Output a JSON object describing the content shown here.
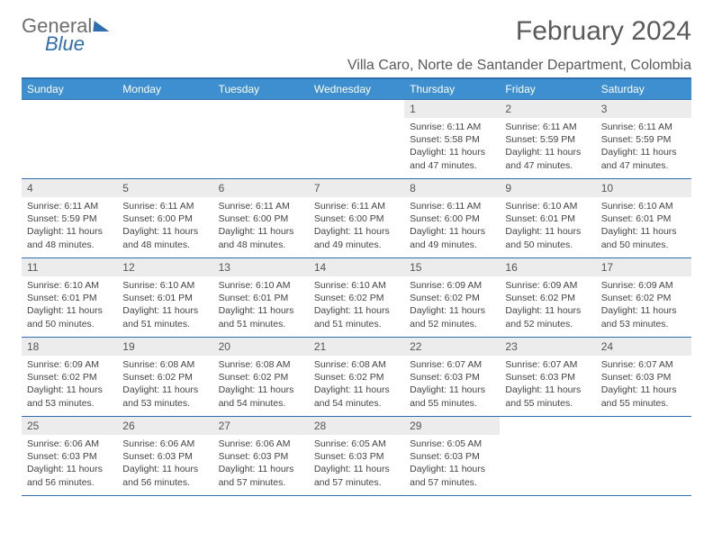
{
  "logo": {
    "top": "General",
    "bottom": "Blue"
  },
  "title": "February 2024",
  "location": "Villa Caro, Norte de Santander Department, Colombia",
  "header_accent": "#3d8fcf",
  "rule_color": "#2f6fb0",
  "daynum_bg": "#ececec",
  "dow": [
    "Sunday",
    "Monday",
    "Tuesday",
    "Wednesday",
    "Thursday",
    "Friday",
    "Saturday"
  ],
  "weeks": [
    [
      null,
      null,
      null,
      null,
      {
        "n": "1",
        "sr": "6:11 AM",
        "ss": "5:58 PM",
        "dl": "11 hours and 47 minutes."
      },
      {
        "n": "2",
        "sr": "6:11 AM",
        "ss": "5:59 PM",
        "dl": "11 hours and 47 minutes."
      },
      {
        "n": "3",
        "sr": "6:11 AM",
        "ss": "5:59 PM",
        "dl": "11 hours and 47 minutes."
      }
    ],
    [
      {
        "n": "4",
        "sr": "6:11 AM",
        "ss": "5:59 PM",
        "dl": "11 hours and 48 minutes."
      },
      {
        "n": "5",
        "sr": "6:11 AM",
        "ss": "6:00 PM",
        "dl": "11 hours and 48 minutes."
      },
      {
        "n": "6",
        "sr": "6:11 AM",
        "ss": "6:00 PM",
        "dl": "11 hours and 48 minutes."
      },
      {
        "n": "7",
        "sr": "6:11 AM",
        "ss": "6:00 PM",
        "dl": "11 hours and 49 minutes."
      },
      {
        "n": "8",
        "sr": "6:11 AM",
        "ss": "6:00 PM",
        "dl": "11 hours and 49 minutes."
      },
      {
        "n": "9",
        "sr": "6:10 AM",
        "ss": "6:01 PM",
        "dl": "11 hours and 50 minutes."
      },
      {
        "n": "10",
        "sr": "6:10 AM",
        "ss": "6:01 PM",
        "dl": "11 hours and 50 minutes."
      }
    ],
    [
      {
        "n": "11",
        "sr": "6:10 AM",
        "ss": "6:01 PM",
        "dl": "11 hours and 50 minutes."
      },
      {
        "n": "12",
        "sr": "6:10 AM",
        "ss": "6:01 PM",
        "dl": "11 hours and 51 minutes."
      },
      {
        "n": "13",
        "sr": "6:10 AM",
        "ss": "6:01 PM",
        "dl": "11 hours and 51 minutes."
      },
      {
        "n": "14",
        "sr": "6:10 AM",
        "ss": "6:02 PM",
        "dl": "11 hours and 51 minutes."
      },
      {
        "n": "15",
        "sr": "6:09 AM",
        "ss": "6:02 PM",
        "dl": "11 hours and 52 minutes."
      },
      {
        "n": "16",
        "sr": "6:09 AM",
        "ss": "6:02 PM",
        "dl": "11 hours and 52 minutes."
      },
      {
        "n": "17",
        "sr": "6:09 AM",
        "ss": "6:02 PM",
        "dl": "11 hours and 53 minutes."
      }
    ],
    [
      {
        "n": "18",
        "sr": "6:09 AM",
        "ss": "6:02 PM",
        "dl": "11 hours and 53 minutes."
      },
      {
        "n": "19",
        "sr": "6:08 AM",
        "ss": "6:02 PM",
        "dl": "11 hours and 53 minutes."
      },
      {
        "n": "20",
        "sr": "6:08 AM",
        "ss": "6:02 PM",
        "dl": "11 hours and 54 minutes."
      },
      {
        "n": "21",
        "sr": "6:08 AM",
        "ss": "6:02 PM",
        "dl": "11 hours and 54 minutes."
      },
      {
        "n": "22",
        "sr": "6:07 AM",
        "ss": "6:03 PM",
        "dl": "11 hours and 55 minutes."
      },
      {
        "n": "23",
        "sr": "6:07 AM",
        "ss": "6:03 PM",
        "dl": "11 hours and 55 minutes."
      },
      {
        "n": "24",
        "sr": "6:07 AM",
        "ss": "6:03 PM",
        "dl": "11 hours and 55 minutes."
      }
    ],
    [
      {
        "n": "25",
        "sr": "6:06 AM",
        "ss": "6:03 PM",
        "dl": "11 hours and 56 minutes."
      },
      {
        "n": "26",
        "sr": "6:06 AM",
        "ss": "6:03 PM",
        "dl": "11 hours and 56 minutes."
      },
      {
        "n": "27",
        "sr": "6:06 AM",
        "ss": "6:03 PM",
        "dl": "11 hours and 57 minutes."
      },
      {
        "n": "28",
        "sr": "6:05 AM",
        "ss": "6:03 PM",
        "dl": "11 hours and 57 minutes."
      },
      {
        "n": "29",
        "sr": "6:05 AM",
        "ss": "6:03 PM",
        "dl": "11 hours and 57 minutes."
      },
      null,
      null
    ]
  ],
  "labels": {
    "sunrise": "Sunrise:",
    "sunset": "Sunset:",
    "daylight": "Daylight:"
  }
}
